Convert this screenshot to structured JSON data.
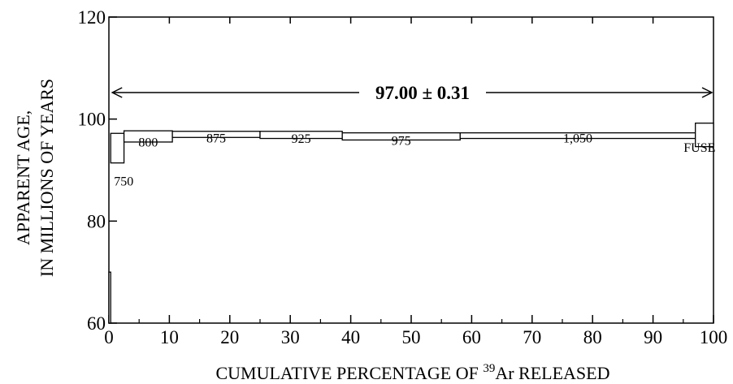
{
  "chart_data": {
    "type": "bar",
    "xlabel": {
      "main": "CUMULATIVE PERCENTAGE OF ",
      "sup": "39",
      "tail": "Ar RELEASED"
    },
    "ylabel": [
      "APPARENT AGE,",
      "IN MILLIONS OF YEARS"
    ],
    "xlim": [
      0,
      100
    ],
    "ylim": [
      60,
      120
    ],
    "x_ticks": [
      0,
      10,
      20,
      30,
      40,
      50,
      60,
      70,
      80,
      90,
      100
    ],
    "x_tick_labels": [
      "0",
      "10",
      "20",
      "30",
      "40",
      "50",
      "60",
      "70",
      "80",
      "90",
      "100"
    ],
    "y_ticks": [
      60,
      80,
      100,
      120
    ],
    "y_tick_labels": [
      "60",
      "80",
      "100",
      "120"
    ],
    "grid": false,
    "steps": [
      {
        "label": "",
        "x_start": 0.0,
        "x_end": 0.3,
        "age_low": 60.0,
        "age_high": 70.0
      },
      {
        "label": "750",
        "x_start": 0.3,
        "x_end": 2.5,
        "age_low": 91.4,
        "age_high": 97.2
      },
      {
        "label": "800",
        "x_start": 2.5,
        "x_end": 10.5,
        "age_low": 95.5,
        "age_high": 97.7
      },
      {
        "label": "875",
        "x_start": 10.5,
        "x_end": 25.0,
        "age_low": 96.4,
        "age_high": 97.6
      },
      {
        "label": "925",
        "x_start": 25.0,
        "x_end": 38.6,
        "age_low": 96.2,
        "age_high": 97.6
      },
      {
        "label": "975",
        "x_start": 38.6,
        "x_end": 58.1,
        "age_low": 95.9,
        "age_high": 97.3
      },
      {
        "label": "1,050",
        "x_start": 58.1,
        "x_end": 97.0,
        "age_low": 96.2,
        "age_high": 97.3
      },
      {
        "label": "FUSE",
        "x_start": 97.0,
        "x_end": 100.0,
        "age_low": 94.6,
        "age_high": 99.2
      }
    ],
    "plateau": {
      "label": "97.00 ± 0.31",
      "age": 105.2,
      "x_start": 0.3,
      "x_end": 100.0
    }
  }
}
